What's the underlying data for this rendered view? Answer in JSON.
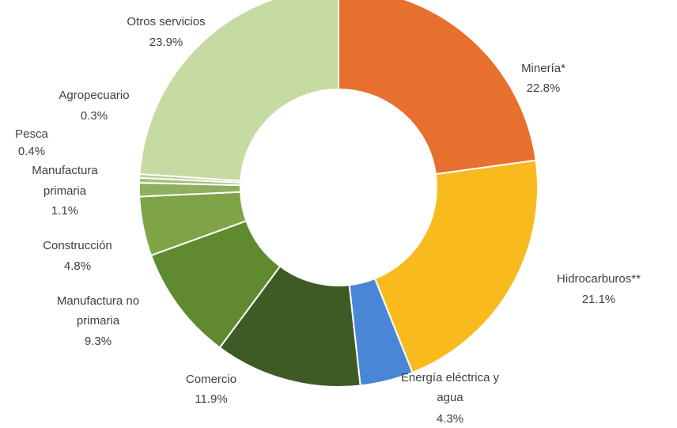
{
  "chart_data": {
    "type": "pie",
    "title": "",
    "slices": [
      {
        "name": "Minería*",
        "value": 22.8,
        "label": "22.8%",
        "color": "#E8702E"
      },
      {
        "name": "Hidrocarburos**",
        "value": 21.1,
        "label": "21.1%",
        "color": "#F9BA1E"
      },
      {
        "name": "Energía eléctrica y agua",
        "value": 4.3,
        "label": "4.3%",
        "color": "#4A86D6"
      },
      {
        "name": "Comercio",
        "value": 11.9,
        "label": "11.9%",
        "color": "#3E5A25"
      },
      {
        "name": "Manufactura no primaria",
        "value": 9.3,
        "label": "9.3%",
        "color": "#5F8A30"
      },
      {
        "name": "Construcción",
        "value": 4.8,
        "label": "4.8%",
        "color": "#7EA447"
      },
      {
        "name": "Manufactura primaria",
        "value": 1.1,
        "label": "1.1%",
        "color": "#8EAE60"
      },
      {
        "name": "Pesca",
        "value": 0.4,
        "label": "0.4%",
        "color": "#A5C07D"
      },
      {
        "name": "Agropecuario",
        "value": 0.3,
        "label": "0.3%",
        "color": "#B8CF92"
      },
      {
        "name": "Otros servicios",
        "value": 23.9,
        "label": "23.9%",
        "color": "#C6DBA1"
      }
    ]
  }
}
